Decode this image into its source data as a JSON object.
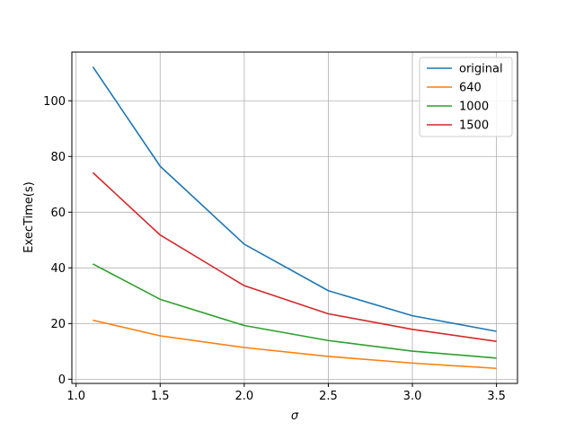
{
  "chart_data": {
    "type": "line",
    "title": "",
    "xlabel": "σ",
    "ylabel": "ExecTime(s)",
    "xlim": [
      0.975,
      3.625
    ],
    "ylim": [
      -1.5,
      117.5
    ],
    "xticks": [
      1.0,
      1.5,
      2.0,
      2.5,
      3.0,
      3.5
    ],
    "xtick_labels": [
      "1.0",
      "1.5",
      "2.0",
      "2.5",
      "3.0",
      "3.5"
    ],
    "yticks": [
      0,
      20,
      40,
      60,
      80,
      100
    ],
    "ytick_labels": [
      "0",
      "20",
      "40",
      "60",
      "80",
      "100"
    ],
    "grid": true,
    "legend_position": "upper right",
    "x": [
      1.1,
      1.5,
      2.0,
      2.5,
      3.0,
      3.5
    ],
    "series": [
      {
        "name": "original",
        "color": "#1f77b4",
        "values": [
          112.2,
          76.5,
          48.5,
          31.8,
          22.8,
          17.2
        ]
      },
      {
        "name": "640",
        "color": "#ff7f0e",
        "values": [
          21.2,
          15.6,
          11.4,
          8.2,
          5.8,
          3.9
        ]
      },
      {
        "name": "1000",
        "color": "#2ca02c",
        "values": [
          41.4,
          28.7,
          19.3,
          13.9,
          10.1,
          7.6
        ]
      },
      {
        "name": "1500",
        "color": "#d62728",
        "values": [
          74.2,
          51.8,
          33.6,
          23.5,
          17.9,
          13.6
        ]
      }
    ]
  }
}
